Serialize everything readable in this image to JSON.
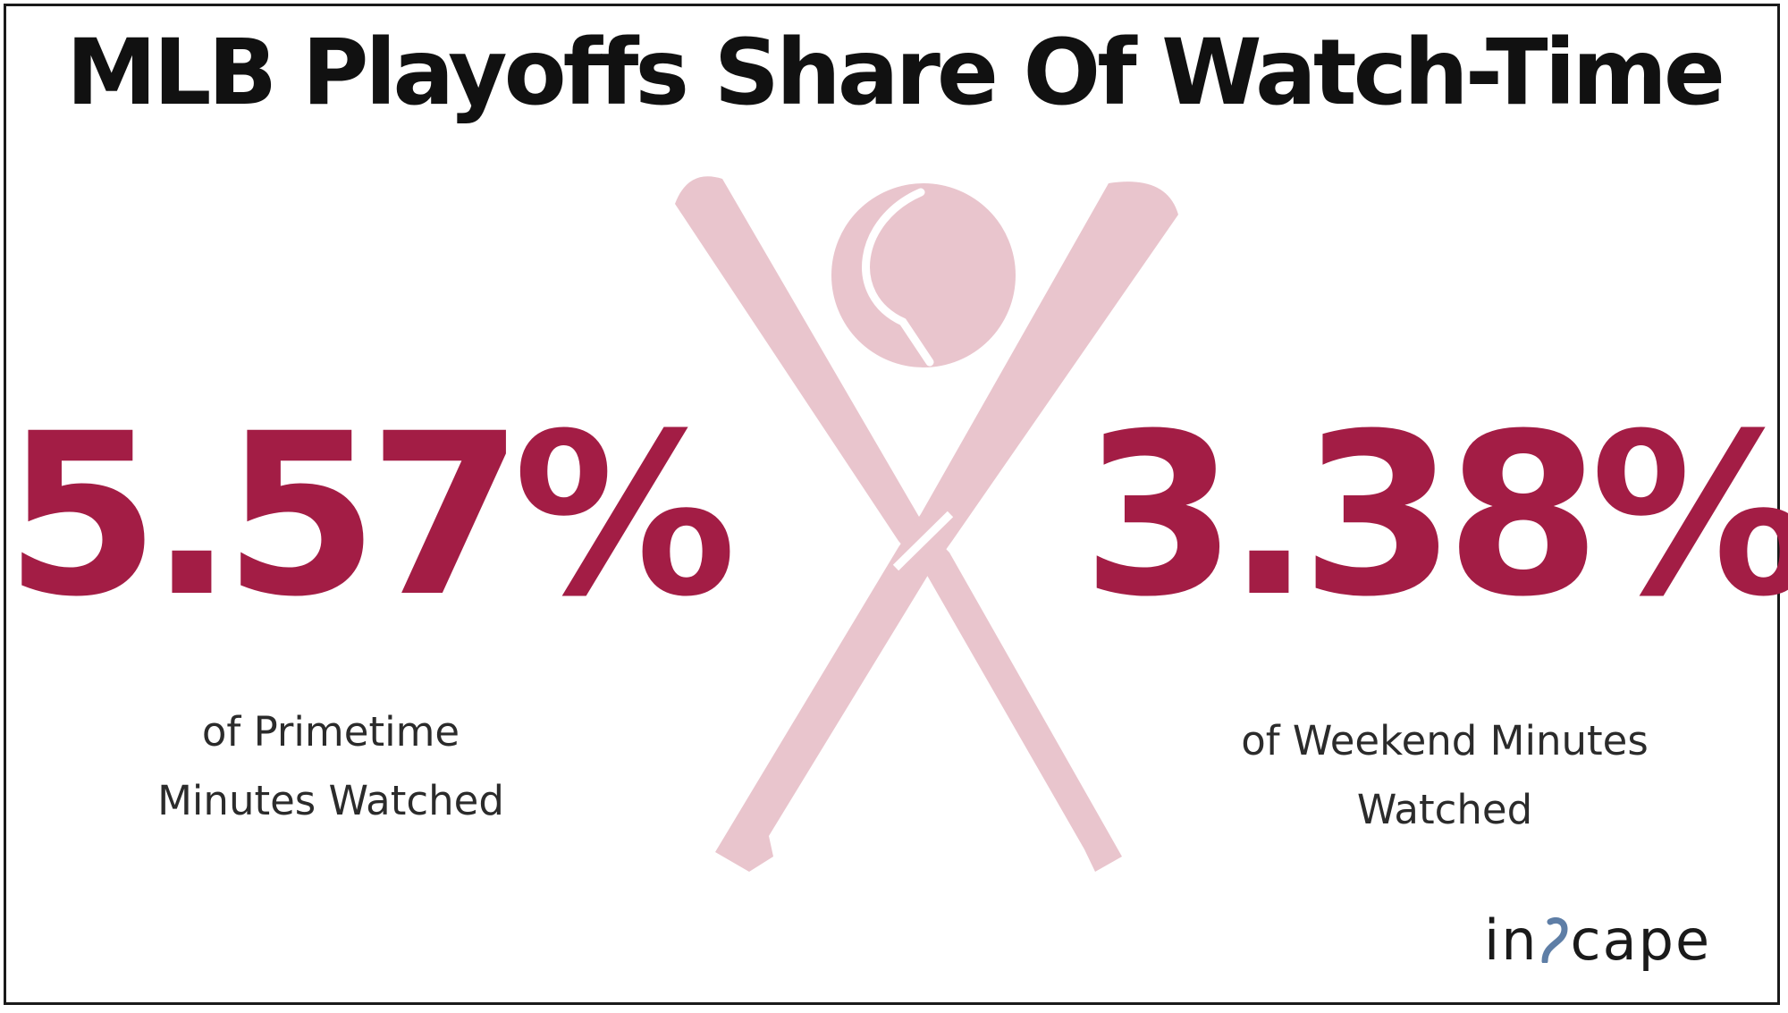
{
  "title": "MLB Playoffs Share Of Watch-Time",
  "stats": [
    {
      "value": "5.57%",
      "caption_lines": [
        "of Primetime",
        "Minutes Watched"
      ]
    },
    {
      "value": "3.38%",
      "caption_lines": [
        "of Weekend Minutes",
        "Watched"
      ]
    }
  ],
  "illustration": {
    "icons": [
      "baseball-bat-icon",
      "baseball-icon"
    ],
    "color": "#e9c5cd"
  },
  "brand": {
    "logo_text_before": "in",
    "logo_text_after": "cape",
    "logo_wordmark": "inscape",
    "mark_color": "#5e7ea6"
  },
  "colors": {
    "accent": "#a31d45",
    "title": "#111111",
    "caption": "#2b2b2b",
    "background": "#ffffff"
  }
}
